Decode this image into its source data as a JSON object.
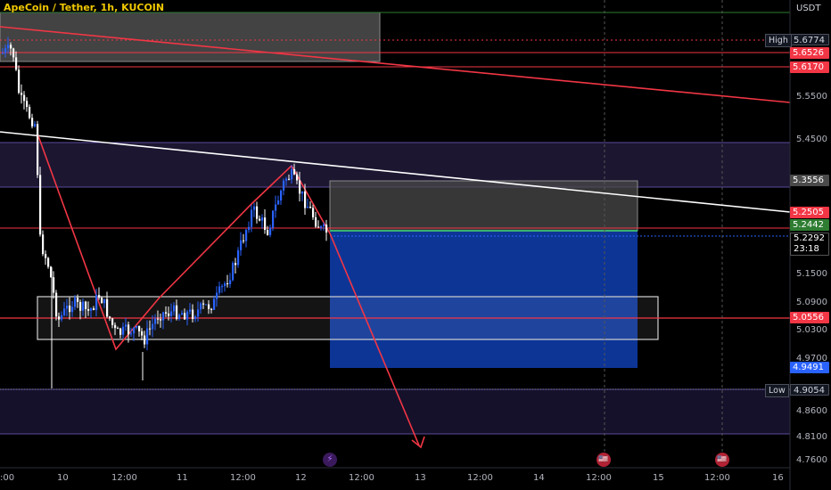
{
  "header": {
    "title": "ApeCoin / Tether, 1h, KUCOIN"
  },
  "price_axis": {
    "unit": "USDT",
    "labels": [
      "5.5500",
      "5.4500",
      "5.1500",
      "5.0900",
      "5.0300",
      "4.9700",
      "4.8600",
      "4.8100",
      "4.7600"
    ],
    "tags": {
      "high_value": "5.6774",
      "v5_6526": "5.6526",
      "v5_6170": "5.6170",
      "v5_3556": "5.3556",
      "v5_2505": "5.2505",
      "v5_2442": "5.2442",
      "current": "5.2292",
      "countdown": "23:18",
      "v5_0556": "5.0556",
      "v4_9491": "4.9491",
      "low_value": "4.9054"
    },
    "side_labels": {
      "high": "High",
      "low": "Low"
    }
  },
  "time_axis": {
    "labels": [
      ":00",
      "10",
      "12:00",
      "11",
      "12:00",
      "12",
      "12:00",
      "13",
      "12:00",
      "14",
      "12:00",
      "15",
      "12:00",
      "16"
    ]
  },
  "events": {
    "lightning": "⚡",
    "flag": "🇺🇸"
  },
  "colors": {
    "up": "#2962ff",
    "down": "#ffffff",
    "trend": "#f23645",
    "accent": "#2962ff"
  }
}
